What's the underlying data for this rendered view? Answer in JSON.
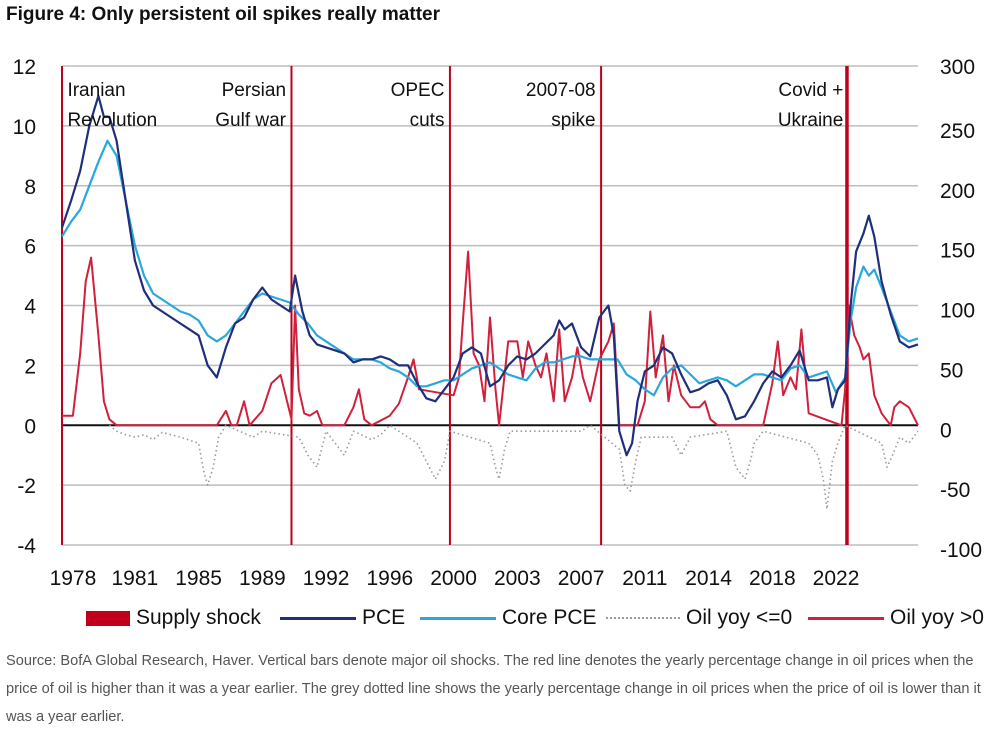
{
  "title": "Figure 4: Only persistent oil spikes really matter",
  "source": "Source: BofA Global Research, Haver. Vertical bars denote major oil shocks. The red line denotes the yearly percentage change in oil prices when the price of oil is higher than it was a year earlier. The grey dotted line shows the yearly percentage change in oil prices when the price of oil is lower than it was a year earlier.",
  "colors": {
    "supply_shock": "#c00018",
    "pce": "#1f2f7a",
    "core_pce": "#2aa7dc",
    "oil_neg": "#9a9a9a",
    "oil_pos": "#d0203c",
    "grid": "#bdbdbd",
    "zero": "#111111"
  },
  "chart_data": {
    "type": "line",
    "title": "Figure 4: Only persistent oil spikes really matter",
    "xlabel": "",
    "ylabel_left": "",
    "ylabel_right": "",
    "xlim": [
      1978.0,
      2025.0
    ],
    "ylim_left": [
      -4,
      12
    ],
    "ylim_right": [
      -100,
      300
    ],
    "grid": true,
    "legend_position": "bottom",
    "x_tick_labels": [
      "1978",
      "1981",
      "1985",
      "1989",
      "1992",
      "1996",
      "2000",
      "2003",
      "2007",
      "2011",
      "2014",
      "2018",
      "2022"
    ],
    "x_tick_values": [
      1978.6,
      1982.0,
      1985.5,
      1989.0,
      1992.5,
      1996.0,
      1999.5,
      2003.0,
      2006.5,
      2010.0,
      2013.5,
      2017.0,
      2020.5
    ],
    "y_left_ticks": [
      "12",
      "10",
      "8",
      "6",
      "4",
      "2",
      "0",
      "-2",
      "-4"
    ],
    "y_right_ticks": [
      "300",
      "250",
      "200",
      "150",
      "100",
      "50",
      "0",
      "-50",
      "-100"
    ],
    "supply_shocks": [
      {
        "label": "Iranian Revolution",
        "x": 1978.0
      },
      {
        "label": "Persian Gulf war",
        "x": 1990.6
      },
      {
        "label": "OPEC cuts",
        "x": 1999.3
      },
      {
        "label": "2007-08 spike",
        "x": 2007.6
      },
      {
        "label": "Covid + Ukraine",
        "x": 2021.1
      }
    ],
    "annotations": [
      {
        "lines": [
          "Iranian",
          "Revolution"
        ],
        "x": 1978.3,
        "anchor": "start"
      },
      {
        "lines": [
          "Persian",
          "Gulf war"
        ],
        "x": 1990.3,
        "anchor": "end"
      },
      {
        "lines": [
          "OPEC",
          "cuts"
        ],
        "x": 1999.0,
        "anchor": "end"
      },
      {
        "lines": [
          "2007-08",
          "spike"
        ],
        "x": 2007.3,
        "anchor": "end"
      },
      {
        "lines": [
          "Covid +",
          "Ukraine"
        ],
        "x": 2020.9,
        "anchor": "end"
      }
    ],
    "series": [
      {
        "name": "PCE",
        "axis": "left",
        "x": [
          1978.0,
          1978.5,
          1979.0,
          1979.5,
          1980.0,
          1980.3,
          1980.6,
          1981.0,
          1981.5,
          1982.0,
          1982.5,
          1983.0,
          1983.5,
          1984.0,
          1984.5,
          1985.0,
          1985.5,
          1986.0,
          1986.5,
          1987.0,
          1987.5,
          1988.0,
          1988.5,
          1989.0,
          1989.5,
          1990.0,
          1990.5,
          1990.8,
          1991.2,
          1991.6,
          1992.0,
          1992.5,
          1993.0,
          1993.5,
          1994.0,
          1994.5,
          1995.0,
          1995.5,
          1996.0,
          1996.5,
          1997.0,
          1997.5,
          1998.0,
          1998.5,
          1999.0,
          1999.5,
          2000.0,
          2000.5,
          2001.0,
          2001.5,
          2002.0,
          2002.5,
          2003.0,
          2003.5,
          2004.0,
          2004.5,
          2005.0,
          2005.3,
          2005.6,
          2006.0,
          2006.5,
          2007.0,
          2007.5,
          2008.0,
          2008.3,
          2008.6,
          2009.0,
          2009.3,
          2009.6,
          2010.0,
          2010.5,
          2011.0,
          2011.5,
          2012.0,
          2012.5,
          2013.0,
          2013.5,
          2014.0,
          2014.5,
          2015.0,
          2015.5,
          2016.0,
          2016.5,
          2017.0,
          2017.5,
          2018.0,
          2018.5,
          2019.0,
          2019.5,
          2020.0,
          2020.3,
          2020.6,
          2021.0,
          2021.3,
          2021.6,
          2022.0,
          2022.3,
          2022.6,
          2023.0,
          2023.5,
          2024.0,
          2024.5,
          2025.0
        ],
        "values": [
          6.6,
          7.5,
          8.5,
          10.0,
          11.0,
          10.3,
          10.3,
          9.5,
          7.5,
          5.5,
          4.5,
          4.0,
          3.8,
          3.6,
          3.4,
          3.2,
          3.0,
          2.0,
          1.6,
          2.6,
          3.4,
          3.6,
          4.2,
          4.6,
          4.2,
          4.0,
          3.8,
          5.0,
          3.8,
          3.0,
          2.7,
          2.6,
          2.5,
          2.4,
          2.1,
          2.2,
          2.2,
          2.3,
          2.2,
          2.0,
          2.0,
          1.4,
          0.9,
          0.8,
          1.2,
          1.6,
          2.4,
          2.6,
          2.4,
          1.3,
          1.5,
          2.0,
          2.3,
          2.2,
          2.4,
          2.7,
          3.0,
          3.5,
          3.2,
          3.4,
          2.6,
          2.3,
          3.6,
          4.0,
          3.0,
          -0.2,
          -1.0,
          -0.6,
          0.8,
          1.8,
          2.0,
          2.6,
          2.4,
          1.7,
          1.1,
          1.2,
          1.4,
          1.5,
          1.0,
          0.2,
          0.3,
          0.8,
          1.4,
          1.8,
          1.6,
          2.0,
          2.5,
          1.5,
          1.5,
          1.6,
          0.6,
          1.2,
          1.5,
          4.0,
          5.8,
          6.4,
          7.0,
          6.3,
          4.8,
          3.7,
          2.8,
          2.6,
          2.7
        ]
      },
      {
        "name": "Core PCE",
        "axis": "left",
        "x": [
          1978.0,
          1978.5,
          1979.0,
          1979.5,
          1980.0,
          1980.5,
          1981.0,
          1981.5,
          1982.0,
          1982.5,
          1983.0,
          1983.5,
          1984.0,
          1984.5,
          1985.0,
          1985.5,
          1986.0,
          1986.5,
          1987.0,
          1987.5,
          1988.0,
          1988.5,
          1989.0,
          1989.5,
          1990.0,
          1990.5,
          1991.0,
          1991.5,
          1992.0,
          1992.5,
          1993.0,
          1993.5,
          1994.0,
          1994.5,
          1995.0,
          1995.5,
          1996.0,
          1996.5,
          1997.0,
          1997.5,
          1998.0,
          1998.5,
          1999.0,
          1999.5,
          2000.0,
          2000.5,
          2001.0,
          2001.5,
          2002.0,
          2002.5,
          2003.0,
          2003.5,
          2004.0,
          2004.5,
          2005.0,
          2005.5,
          2006.0,
          2006.5,
          2007.0,
          2007.5,
          2008.0,
          2008.5,
          2009.0,
          2009.5,
          2010.0,
          2010.5,
          2011.0,
          2011.5,
          2012.0,
          2012.5,
          2013.0,
          2013.5,
          2014.0,
          2014.5,
          2015.0,
          2015.5,
          2016.0,
          2016.5,
          2017.0,
          2017.5,
          2018.0,
          2018.5,
          2019.0,
          2019.5,
          2020.0,
          2020.5,
          2021.0,
          2021.3,
          2021.6,
          2022.0,
          2022.3,
          2022.6,
          2023.0,
          2023.5,
          2024.0,
          2024.5,
          2025.0
        ],
        "values": [
          6.3,
          6.8,
          7.2,
          8.0,
          8.8,
          9.5,
          9.0,
          7.5,
          6.0,
          5.0,
          4.4,
          4.2,
          4.0,
          3.8,
          3.7,
          3.5,
          3.0,
          2.8,
          3.0,
          3.4,
          3.8,
          4.2,
          4.4,
          4.3,
          4.2,
          4.1,
          3.7,
          3.4,
          3.0,
          2.8,
          2.6,
          2.4,
          2.2,
          2.2,
          2.2,
          2.1,
          1.9,
          1.8,
          1.6,
          1.3,
          1.3,
          1.4,
          1.5,
          1.5,
          1.7,
          1.9,
          2.0,
          2.1,
          1.9,
          1.7,
          1.6,
          1.5,
          1.9,
          2.1,
          2.1,
          2.2,
          2.3,
          2.3,
          2.2,
          2.2,
          2.2,
          2.2,
          1.7,
          1.5,
          1.2,
          1.0,
          1.6,
          1.9,
          2.0,
          1.7,
          1.4,
          1.5,
          1.6,
          1.5,
          1.3,
          1.5,
          1.7,
          1.7,
          1.6,
          1.5,
          1.9,
          2.0,
          1.6,
          1.7,
          1.8,
          1.1,
          1.6,
          3.5,
          4.6,
          5.3,
          5.0,
          5.2,
          4.6,
          3.8,
          3.0,
          2.8,
          2.9
        ]
      },
      {
        "name": "Oil yoy >0",
        "axis": "right",
        "x": [
          1978.0,
          1978.3,
          1978.6,
          1979.0,
          1979.3,
          1979.6,
          1980.0,
          1980.3,
          1980.6,
          1981.0,
          1981.3,
          1981.5,
          1983.5,
          1984.0,
          1985.5,
          1986.5,
          1987.0,
          1987.3,
          1987.6,
          1988.0,
          1988.3,
          1989.0,
          1989.5,
          1990.0,
          1990.6,
          1990.8,
          1991.0,
          1991.3,
          1991.6,
          1992.0,
          1992.3,
          1993.5,
          1994.0,
          1994.3,
          1994.6,
          1995.0,
          1996.0,
          1996.5,
          1997.0,
          1997.3,
          1997.6,
          1999.5,
          1999.8,
          2000.0,
          2000.3,
          2000.6,
          2000.9,
          2001.2,
          2001.5,
          2001.8,
          2002.0,
          2002.5,
          2003.0,
          2003.3,
          2003.6,
          2004.0,
          2004.3,
          2004.6,
          2005.0,
          2005.3,
          2005.6,
          2006.0,
          2006.3,
          2006.6,
          2007.0,
          2007.5,
          2008.0,
          2008.3,
          2008.6,
          2009.6,
          2010.0,
          2010.3,
          2010.6,
          2011.0,
          2011.3,
          2011.6,
          2012.0,
          2012.5,
          2013.0,
          2013.3,
          2013.6,
          2014.0,
          2016.5,
          2017.0,
          2017.3,
          2017.6,
          2018.0,
          2018.3,
          2018.6,
          2019.0,
          2020.8,
          2021.0,
          2021.2,
          2021.5,
          2021.8,
          2022.0,
          2022.3,
          2022.6,
          2023.0,
          2023.5,
          2023.7,
          2024.0,
          2024.5,
          2025.0
        ],
        "values": [
          8,
          8,
          8,
          60,
          120,
          140,
          75,
          20,
          5,
          0,
          0,
          0,
          0,
          0,
          0,
          0,
          12,
          0,
          0,
          20,
          0,
          12,
          35,
          42,
          5,
          100,
          30,
          10,
          8,
          12,
          0,
          0,
          15,
          30,
          5,
          0,
          8,
          18,
          40,
          55,
          30,
          25,
          40,
          85,
          145,
          60,
          50,
          20,
          90,
          30,
          0,
          70,
          70,
          40,
          70,
          50,
          40,
          60,
          20,
          80,
          20,
          40,
          65,
          40,
          20,
          55,
          70,
          85,
          0,
          0,
          20,
          95,
          40,
          75,
          20,
          50,
          25,
          15,
          15,
          20,
          5,
          0,
          0,
          35,
          70,
          25,
          40,
          30,
          80,
          10,
          0,
          30,
          100,
          75,
          65,
          55,
          60,
          25,
          10,
          0,
          15,
          20,
          15,
          0
        ]
      },
      {
        "name": "Oil yoy <=0",
        "axis": "right",
        "x": [
          1980.6,
          1981.0,
          1981.5,
          1982.0,
          1982.5,
          1983.0,
          1983.5,
          1984.5,
          1985.5,
          1985.8,
          1986.0,
          1986.3,
          1986.6,
          1987.0,
          1988.5,
          1989.0,
          1991.0,
          1991.5,
          1992.0,
          1992.5,
          1993.0,
          1993.5,
          1994.0,
          1995.0,
          1995.5,
          1996.0,
          1997.5,
          1998.0,
          1998.5,
          1999.0,
          1999.3,
          2001.5,
          2001.8,
          2002.0,
          2002.3,
          2002.6,
          2006.5,
          2007.0,
          2008.6,
          2008.9,
          2009.2,
          2009.5,
          2009.8,
          2011.5,
          2012.0,
          2012.5,
          2014.5,
          2015.0,
          2015.5,
          2015.8,
          2016.0,
          2016.5,
          2019.0,
          2019.5,
          2019.8,
          2020.0,
          2020.3,
          2020.6,
          2021.0,
          2023.0,
          2023.3,
          2023.6,
          2024.0,
          2024.5,
          2025.0
        ],
        "values": [
          0,
          -5,
          -8,
          -10,
          -8,
          -12,
          -6,
          -10,
          -15,
          -40,
          -50,
          -35,
          -10,
          0,
          -10,
          -5,
          -10,
          -25,
          -35,
          -5,
          -15,
          -25,
          -5,
          -12,
          -8,
          0,
          -15,
          -30,
          -45,
          -30,
          -5,
          -15,
          -35,
          -45,
          -20,
          -5,
          -5,
          0,
          -20,
          -50,
          -55,
          -30,
          -10,
          -10,
          -25,
          -10,
          -5,
          -35,
          -45,
          -30,
          -15,
          -5,
          -15,
          -25,
          -45,
          -70,
          -30,
          -15,
          0,
          -15,
          -35,
          -25,
          -10,
          -15,
          -5
        ]
      }
    ]
  },
  "legend": {
    "items": [
      {
        "label": "Supply shock",
        "style": "bar"
      },
      {
        "label": "PCE",
        "style": "line"
      },
      {
        "label": "Core PCE",
        "style": "line"
      },
      {
        "label": "Oil yoy <=0",
        "style": "dotted"
      },
      {
        "label": "Oil yoy >0",
        "style": "line"
      }
    ]
  }
}
